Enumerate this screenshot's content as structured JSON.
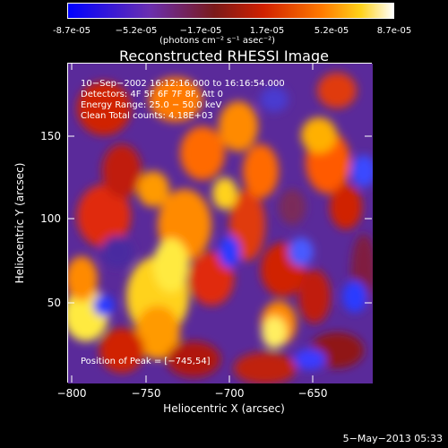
{
  "colorbar": {
    "tick_labels": [
      "-8.7e-05",
      "−5.2e-05",
      "−1.7e-05",
      "1.7e-05",
      "5.2e-05",
      "8.7e-05"
    ],
    "units_label": "(photons cm⁻² s⁻¹ asec⁻²)",
    "colors": [
      "#0000ff",
      "#6a2fb0",
      "#7a1a1a",
      "#d02000",
      "#ff7a00",
      "#ffffff"
    ]
  },
  "chart_data": {
    "type": "heatmap",
    "title": "Reconstructed RHESSI Image",
    "xlabel": "Heliocentric X (arcsec)",
    "ylabel": "Heliocentric Y (arcsec)",
    "xlim": [
      -805,
      -612
    ],
    "ylim": [
      0,
      190
    ],
    "x_ticks": [
      -800,
      -750,
      -700,
      -650
    ],
    "y_ticks": [
      50,
      100,
      150
    ],
    "colorbar_range": [
      -8.7e-05,
      8.7e-05
    ],
    "peak_position": [
      -745,
      54
    ]
  },
  "info_lines": [
    "10−Sep−2002 16:12:16.000 to 16:16:54.000",
    "Detectors: 4F 5F 6F 7F 8F, Att 0",
    "Energy Range: 25.0 − 50.0 keV",
    "Clean     Total counts: 4.18E+03"
  ],
  "peak_text": "Position of Peak = [−745,54]",
  "footer_date": "5−May−2013 05:33"
}
